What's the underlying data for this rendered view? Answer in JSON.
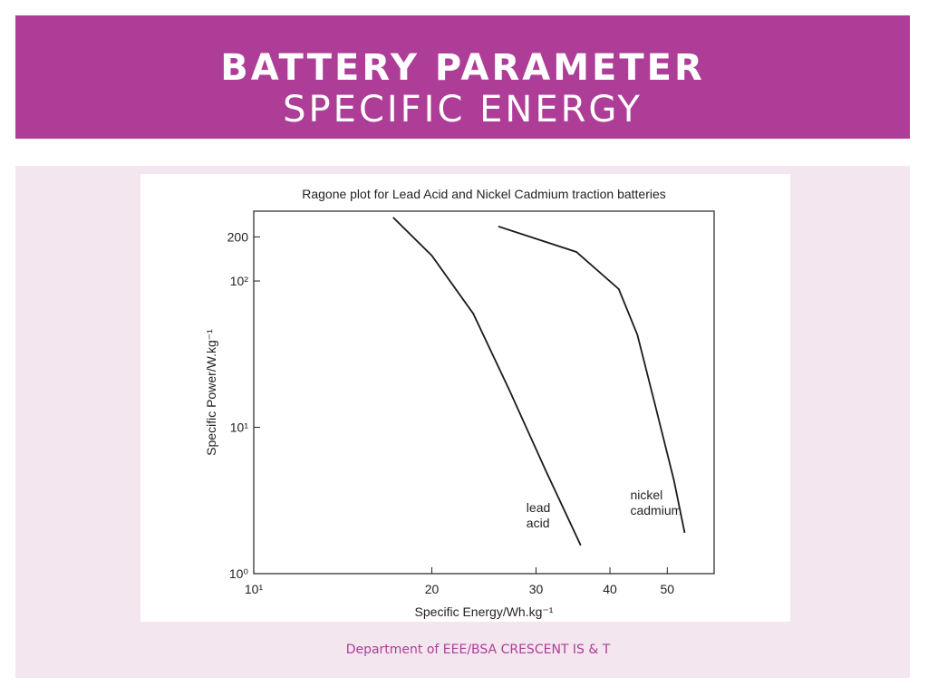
{
  "slide": {
    "title": "BATTERY PARAMETER",
    "subtitle": "SPECIFIC ENERGY",
    "footer": "Department of EEE/BSA CRESCENT IS & T"
  },
  "chart_data": {
    "type": "line",
    "title": "Ragone plot for Lead Acid and Nickel Cadmium traction batteries",
    "xlabel": "Specific Energy/Wh.kg⁻¹",
    "ylabel": "Specific Power/W.kg⁻¹",
    "xscale": "log",
    "yscale": "log",
    "xlim": [
      10,
      60
    ],
    "ylim": [
      1,
      300
    ],
    "xticks": [
      {
        "value": 10,
        "label": "10¹"
      },
      20,
      30,
      40,
      50
    ],
    "yticks": [
      {
        "value": 1,
        "label": "10⁰"
      },
      {
        "value": 10,
        "label": "10¹"
      },
      {
        "value": 100,
        "label": "10²"
      },
      200
    ],
    "series": [
      {
        "name": "lead acid",
        "color": "#1a1a1a",
        "x": [
          17.2,
          20,
          23.5,
          27.0,
          31.2,
          35.7
        ],
        "values": [
          272,
          149,
          59.8,
          18.2,
          5.0,
          1.56
        ]
      },
      {
        "name": "nickel cadmium",
        "color": "#1a1a1a",
        "x": [
          25.9,
          35.1,
          41.4,
          44.5,
          47.8,
          51.3,
          53.5
        ],
        "values": [
          236,
          158,
          88,
          43,
          13.7,
          4.36,
          1.9
        ]
      }
    ]
  }
}
